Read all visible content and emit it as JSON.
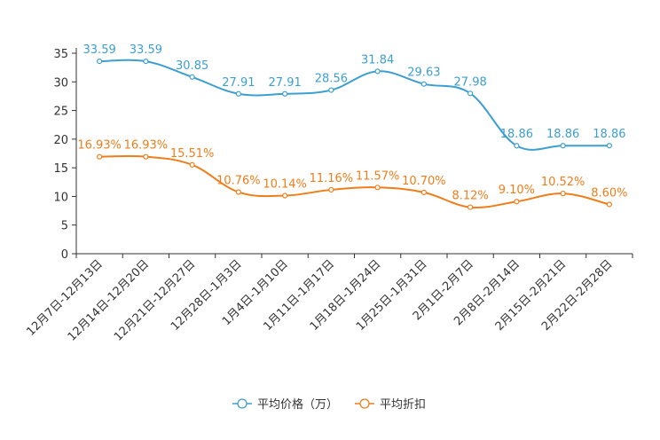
{
  "chart_data": {
    "type": "line",
    "title": "",
    "xlabel": "",
    "ylabel": "",
    "ylim": [
      0,
      35
    ],
    "yticks": [
      0,
      5,
      10,
      15,
      20,
      25,
      30,
      35
    ],
    "grid": false,
    "smooth": true,
    "legend_position": "bottom-center",
    "categories": [
      "12月7日-12月13日",
      "12月14日-12月20日",
      "12月21日-12月27日",
      "12月28日-1月3日",
      "1月4日-1月10日",
      "1月11日-1月17日",
      "1月18日-1月24日",
      "1月25日-1月31日",
      "2月1日-2月7日",
      "2月8日-2月14日",
      "2月15日-2月21日",
      "2月22日-2月28日"
    ],
    "series": [
      {
        "name": "平均价格（万）",
        "color": "#3d9fd1",
        "values": [
          33.59,
          33.59,
          30.85,
          27.91,
          27.91,
          28.56,
          31.84,
          29.63,
          27.98,
          18.86,
          18.86,
          18.86
        ],
        "labels": [
          "33.59",
          "33.59",
          "30.85",
          "27.91",
          "27.91",
          "28.56",
          "31.84",
          "29.63",
          "27.98",
          "18.86",
          "18.86",
          "18.86"
        ]
      },
      {
        "name": "平均折扣",
        "color": "#f07d1a",
        "values": [
          16.93,
          16.93,
          15.51,
          10.76,
          10.14,
          11.16,
          11.57,
          10.7,
          8.12,
          9.1,
          10.52,
          8.6
        ],
        "labels": [
          "16.93%",
          "16.93%",
          "15.51%",
          "10.76%",
          "10.14%",
          "11.16%",
          "11.57%",
          "10.70%",
          "8.12%",
          "9.10%",
          "10.52%",
          "8.60%"
        ]
      }
    ]
  }
}
